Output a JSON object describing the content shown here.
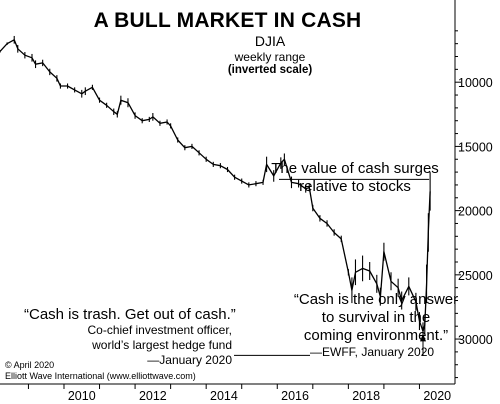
{
  "chart_data": {
    "type": "line",
    "title": "A BULL MARKET IN CASH",
    "subtitle": "DJIA",
    "subtitle_lines": [
      "weekly range",
      "(inverted scale)"
    ],
    "y_axis": {
      "position": "right",
      "inverted": true,
      "ylim": [
        3600,
        33500
      ],
      "ticks": [
        10000,
        15000,
        20000,
        25000,
        30000
      ],
      "tick_labels": [
        "10000",
        "15000",
        "20000",
        "25000",
        "30000"
      ]
    },
    "x_axis": {
      "xlim": [
        2008.2,
        2021.0
      ],
      "ticks": [
        2010,
        2012,
        2014,
        2016,
        2018,
        2020
      ],
      "tick_labels": [
        "2010",
        "2012",
        "2014",
        "2016",
        "2018",
        "2020"
      ]
    },
    "grid": false,
    "x": [
      2008.2,
      2008.4,
      2008.6,
      2008.7,
      2008.9,
      2009.1,
      2009.2,
      2009.4,
      2009.6,
      2009.8,
      2009.9,
      2010.1,
      2010.3,
      2010.5,
      2010.6,
      2010.8,
      2011.0,
      2011.2,
      2011.4,
      2011.5,
      2011.6,
      2011.8,
      2012.0,
      2012.2,
      2012.4,
      2012.5,
      2012.7,
      2012.9,
      2013.0,
      2013.2,
      2013.4,
      2013.6,
      2013.8,
      2014.0,
      2014.2,
      2014.4,
      2014.6,
      2014.8,
      2015.0,
      2015.2,
      2015.4,
      2015.6,
      2015.7,
      2015.9,
      2016.1,
      2016.2,
      2016.4,
      2016.6,
      2016.8,
      2016.9,
      2017.0,
      2017.2,
      2017.4,
      2017.6,
      2017.8,
      2018.0,
      2018.1,
      2018.2,
      2018.4,
      2018.6,
      2018.8,
      2018.9,
      2019.0,
      2019.2,
      2019.4,
      2019.5,
      2019.7,
      2019.9,
      2020.0,
      2020.1,
      2020.15,
      2020.2,
      2020.25,
      2020.3
    ],
    "values": [
      7600,
      7000,
      6700,
      7400,
      7900,
      8100,
      8600,
      8500,
      9200,
      9700,
      10300,
      10300,
      10600,
      10900,
      10700,
      10400,
      11400,
      11800,
      12300,
      12500,
      11400,
      11600,
      12600,
      13000,
      12900,
      12700,
      13200,
      13100,
      13400,
      14500,
      15100,
      15000,
      15500,
      16000,
      16400,
      16500,
      16800,
      17400,
      17700,
      18000,
      17900,
      17800,
      16400,
      17300,
      16300,
      16000,
      17800,
      17900,
      18300,
      18200,
      19800,
      20600,
      21000,
      21700,
      22200,
      24800,
      26200,
      24800,
      24500,
      24700,
      25700,
      26700,
      23200,
      25500,
      26000,
      27000,
      25900,
      27100,
      28600,
      29400,
      28900,
      25700,
      21700,
      18500
    ],
    "range": [
      100,
      100,
      300,
      300,
      250,
      300,
      300,
      250,
      250,
      250,
      200,
      200,
      200,
      300,
      300,
      200,
      200,
      200,
      250,
      250,
      350,
      350,
      250,
      200,
      200,
      300,
      200,
      200,
      200,
      200,
      200,
      200,
      200,
      200,
      200,
      200,
      200,
      200,
      200,
      200,
      200,
      200,
      600,
      450,
      450,
      450,
      450,
      300,
      300,
      300,
      250,
      250,
      250,
      250,
      250,
      250,
      1000,
      1000,
      1000,
      700,
      700,
      700,
      700,
      700,
      700,
      700,
      700,
      700,
      700,
      700,
      700,
      1500,
      1500,
      1500
    ]
  },
  "annotations": {
    "right_top": [
      "The value of cash surges",
      "relative to stocks"
    ],
    "left_quote": "“Cash is trash. Get out of cash.”",
    "left_attr": [
      "Co-chief investment officer,",
      "world’s largest hedge fund",
      "—January 2020"
    ],
    "right_quote": [
      "“Cash is the only answer",
      "to survival in the",
      "coming environment.”"
    ],
    "right_attr": "—EWFF, January 2020"
  },
  "credits": [
    "© April 2020",
    "Elliott Wave International (www.elliottwave.com)"
  ]
}
